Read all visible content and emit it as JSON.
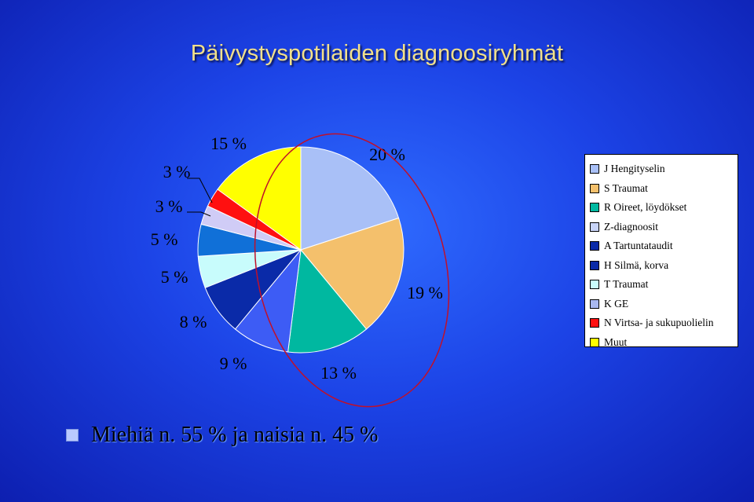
{
  "title": "Päivystyspotilaiden diagnoosiryhmät",
  "footer": "Miehiä n. 55 % ja naisia n. 45 %",
  "chart_data": {
    "type": "pie",
    "start_angle_deg": 0,
    "slices": [
      {
        "legend": "J Hengityselin",
        "value": 20,
        "label": "20 %",
        "color": "#a9c0f7"
      },
      {
        "legend": "S Traumat",
        "value": 19,
        "label": "19 %",
        "color": "#f4c06c"
      },
      {
        "legend": "R Oireet, löydökset",
        "value": 13,
        "label": "13 %",
        "color": "#00b8a0"
      },
      {
        "legend": "Z-diagnoosit",
        "value": 9,
        "label": "9 %",
        "color": "#3d5cf5"
      },
      {
        "legend": "A Tartuntataudit",
        "value": 8,
        "label": "8 %",
        "color": "#0a2aa8"
      },
      {
        "legend": "H Silmä, korva",
        "value": 5,
        "label": "5 %",
        "color": "#c8fcfc"
      },
      {
        "legend": "T Traumat",
        "value": 5,
        "label": "5 %",
        "color": "#1070d8"
      },
      {
        "legend": "K GE",
        "value": 3,
        "label": "3 %",
        "color": "#d0ccf6"
      },
      {
        "legend": "N Virtsa- ja sukupuolielin",
        "value": 3,
        "label": "3 %",
        "color": "#ff1010"
      },
      {
        "legend": "Muut",
        "value": 15,
        "label": "15 %",
        "color": "#ffff00"
      }
    ],
    "legend_swatches": [
      "#a9c0f7",
      "#f4c06c",
      "#00b8a0",
      "#c8d4f8",
      "#0a2aa8",
      "#0a2aa8",
      "#c8fcfc",
      "#a9b8f0",
      "#ff1010",
      "#ffff00"
    ],
    "legend_position": "right",
    "highlight_ellipse_color": "#c0102a"
  }
}
